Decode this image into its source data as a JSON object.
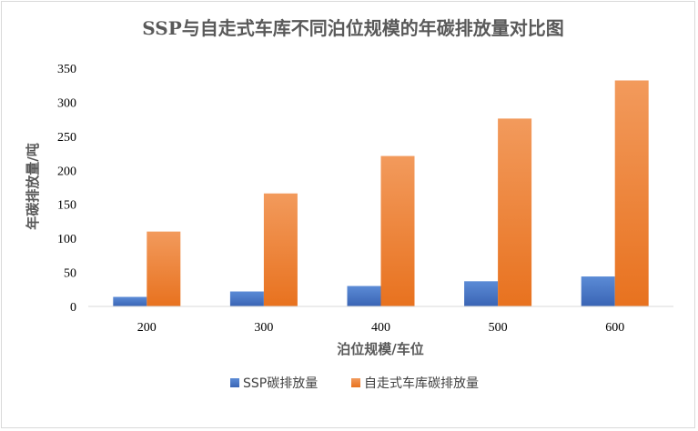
{
  "chart_data": {
    "type": "bar",
    "title": "SSP与自走式车库不同泊位规模的年碳排放量对比图",
    "xlabel": "泊位规模/车位",
    "ylabel": "年碳排放量/吨",
    "categories": [
      "200",
      "300",
      "400",
      "500",
      "600"
    ],
    "ylim": [
      0,
      350
    ],
    "yticks": [
      0,
      50,
      100,
      150,
      200,
      250,
      300,
      350
    ],
    "grid": false,
    "legend_position": "bottom",
    "series": [
      {
        "name": "SSP碳排放量",
        "values": [
          14,
          22,
          30,
          37,
          44
        ],
        "color": "#4472c4"
      },
      {
        "name": "自走式车库碳排放量",
        "values": [
          110,
          166,
          221,
          276,
          332
        ],
        "color": "#ed7d31"
      }
    ]
  }
}
